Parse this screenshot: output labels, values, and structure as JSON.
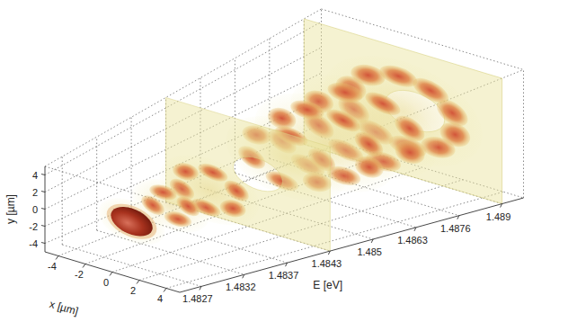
{
  "chart_data": {
    "type": "volume3d",
    "xlabel": "x [µm]",
    "ylabel": "y [µm]",
    "zlabel": "E [eV]",
    "xlim": [
      -5,
      5
    ],
    "xticks": [
      -4,
      -2,
      0,
      2,
      4
    ],
    "ylim": [
      -5,
      5
    ],
    "yticks": [
      -4,
      -2,
      0,
      2,
      4
    ],
    "categories": [
      "1.4827",
      "1.4832",
      "1.4837",
      "1.4843",
      "1.485",
      "1.4863",
      "1.4876",
      "1.489"
    ],
    "grid": true
  }
}
